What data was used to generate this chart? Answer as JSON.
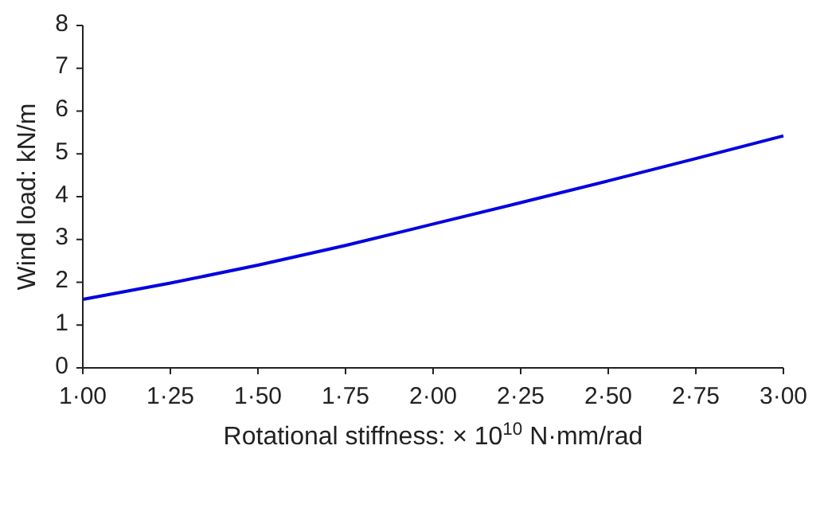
{
  "chart_data": {
    "type": "line",
    "xlabel": "Rotational stiffness: × 10$^{10}$ N·mm/rad",
    "ylabel": "Wind load: kN/m",
    "categories": [
      "1·00",
      "1·25",
      "1·50",
      "1·75",
      "2·00",
      "2·25",
      "2·50",
      "2·75",
      "3·00"
    ],
    "series": [
      {
        "color": "#0000e0",
        "values": [
          1.6,
          1.98,
          2.4,
          2.86,
          3.36,
          3.86,
          4.37,
          4.89,
          5.42
        ]
      }
    ],
    "ylim": [
      0,
      8
    ],
    "yticks": [
      0,
      1,
      2,
      3,
      4,
      5,
      6,
      7,
      8
    ],
    "grid": false,
    "legend": false,
    "marker": "none",
    "line_style": "solid"
  }
}
